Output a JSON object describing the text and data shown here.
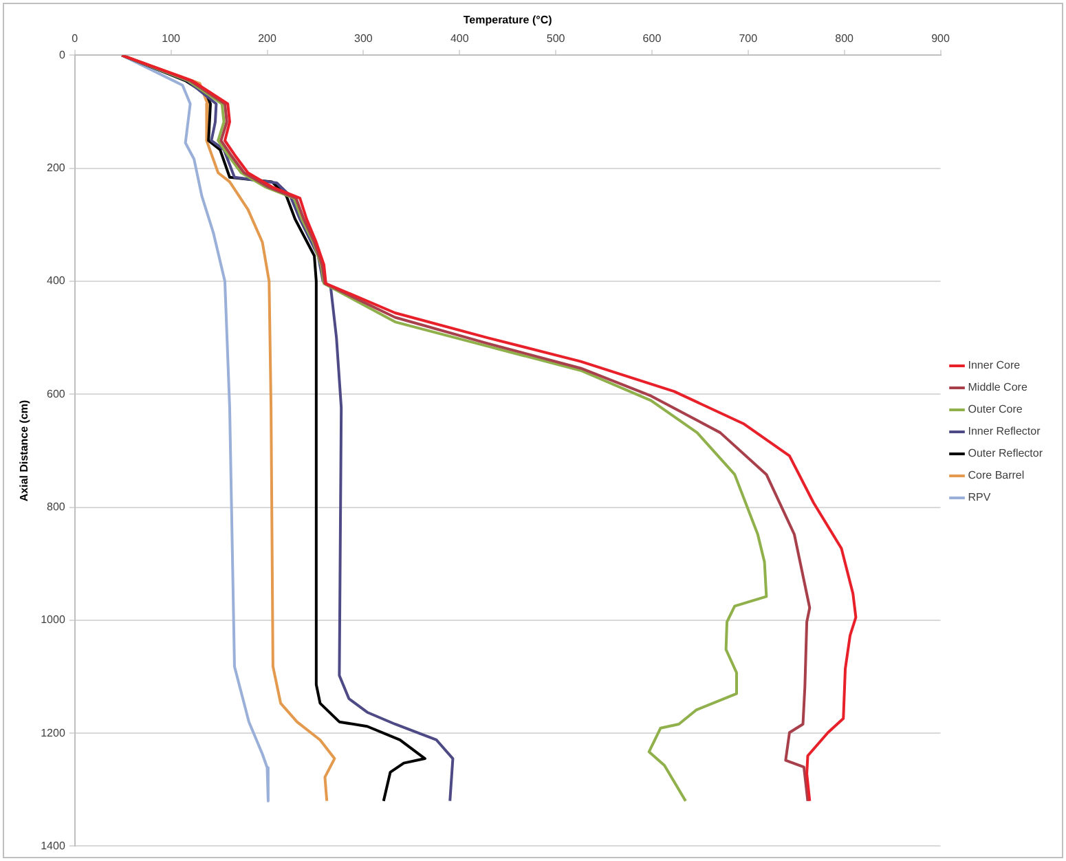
{
  "chart_data": {
    "type": "line",
    "xlabel": "Temperature (°C)",
    "ylabel": "Axial Distance (cm)",
    "xlim": [
      0,
      900
    ],
    "xticks": [
      0,
      100,
      200,
      300,
      400,
      500,
      600,
      700,
      800,
      900
    ],
    "ylim": [
      1400,
      0
    ],
    "yticks": [
      0,
      200,
      400,
      600,
      800,
      1000,
      1200,
      1400
    ],
    "grid": "y",
    "legend": "right",
    "series": [
      {
        "name": "Inner Core",
        "color": "#e8202a",
        "x": [
          49,
          122,
          159,
          161,
          156,
          166,
          180,
          205,
          234,
          241,
          251,
          259,
          261,
          333,
          429,
          526,
          623,
          695,
          743,
          768,
          797,
          809,
          812,
          806,
          801,
          799,
          783,
          762,
          761,
          764
        ],
        "values": [
          0,
          45,
          86,
          118,
          151,
          176,
          208,
          233,
          253,
          290,
          331,
          371,
          404,
          456,
          500,
          542,
          595,
          652,
          709,
          792,
          873,
          953,
          995,
          1027,
          1086,
          1174,
          1199,
          1240,
          1272,
          1320
        ]
      },
      {
        "name": "Middle Core",
        "color": "#a8404c",
        "x": [
          49,
          120,
          156,
          158,
          152,
          162,
          176,
          201,
          230,
          238,
          249,
          257,
          260,
          333,
          429,
          526,
          599,
          671,
          719,
          748,
          764,
          761,
          759,
          757,
          743,
          739,
          758,
          762
        ],
        "values": [
          0,
          45,
          86,
          118,
          151,
          176,
          208,
          233,
          253,
          290,
          331,
          371,
          404,
          464,
          510,
          554,
          603,
          668,
          742,
          848,
          978,
          1003,
          1118,
          1184,
          1199,
          1248,
          1260,
          1320
        ]
      },
      {
        "name": "Outer Core",
        "color": "#8fb04a",
        "x": [
          49,
          118,
          153,
          155,
          149,
          159,
          173,
          198,
          228,
          236,
          248,
          256,
          259,
          333,
          429,
          526,
          599,
          647,
          686,
          710,
          717,
          719,
          686,
          678,
          677,
          688,
          688,
          646,
          628,
          609,
          597,
          613,
          635
        ],
        "values": [
          0,
          45,
          86,
          118,
          151,
          176,
          208,
          233,
          253,
          290,
          331,
          371,
          404,
          472,
          515,
          558,
          611,
          668,
          742,
          848,
          897,
          958,
          975,
          1003,
          1052,
          1093,
          1130,
          1159,
          1184,
          1191,
          1233,
          1257,
          1320
        ]
      },
      {
        "name": "Inner Reflector",
        "color": "#4e4a86",
        "x": [
          49,
          117,
          147,
          146,
          142,
          155,
          166,
          210,
          224,
          234,
          253,
          258,
          266,
          272,
          277,
          275,
          285,
          304,
          333,
          376,
          393,
          390
        ],
        "values": [
          0,
          45,
          86,
          118,
          151,
          167,
          216,
          226,
          249,
          290,
          355,
          400,
          410,
          500,
          624,
          1098,
          1139,
          1163,
          1184,
          1212,
          1245,
          1320
        ]
      },
      {
        "name": "Outer Reflector",
        "color": "#000000",
        "x": [
          49,
          115,
          137,
          141,
          139,
          151,
          161,
          205,
          220,
          229,
          249,
          251,
          251,
          255,
          275,
          304,
          338,
          364,
          342,
          328,
          321
        ],
        "values": [
          0,
          45,
          69,
          86,
          151,
          167,
          216,
          224,
          249,
          290,
          355,
          400,
          1114,
          1147,
          1180,
          1188,
          1212,
          1245,
          1253,
          1269,
          1320
        ]
      },
      {
        "name": "Core Barrel",
        "color": "#e39a4e",
        "x": [
          49,
          130,
          138,
          137,
          149,
          161,
          180,
          195,
          202,
          204,
          206,
          214,
          231,
          255,
          270,
          260,
          262
        ],
        "values": [
          0,
          50,
          86,
          151,
          208,
          224,
          273,
          331,
          400,
          624,
          1082,
          1147,
          1180,
          1212,
          1245,
          1278,
          1320
        ]
      },
      {
        "name": "RPV",
        "color": "#9ab0d8",
        "x": [
          49,
          112,
          120,
          115,
          124,
          132,
          144,
          156,
          161,
          166,
          181,
          195,
          200,
          201
        ],
        "values": [
          0,
          53,
          86,
          155,
          184,
          249,
          314,
          400,
          624,
          1082,
          1180,
          1237,
          1261,
          1320
        ]
      }
    ]
  }
}
